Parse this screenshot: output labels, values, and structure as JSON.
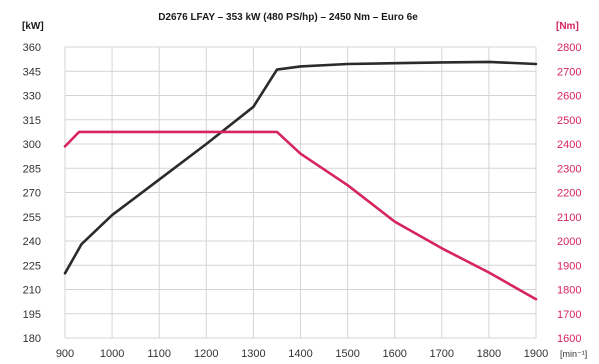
{
  "chart_data": {
    "type": "line",
    "title": "D2676 LFAY – 353 kW (480 PS/hp) – 2450 Nm – Euro 6e",
    "x_unit": "[min⁻¹]",
    "y_left_unit": "[kW]",
    "y_right_unit": "[Nm]",
    "xlim": [
      900,
      1900
    ],
    "x_ticks": [
      900,
      1000,
      1100,
      1200,
      1300,
      1400,
      1500,
      1600,
      1700,
      1800,
      1900
    ],
    "ylim_left": [
      180,
      360
    ],
    "y_left_ticks": [
      180,
      195,
      210,
      225,
      240,
      255,
      270,
      285,
      300,
      315,
      330,
      345,
      360
    ],
    "ylim_right": [
      1600,
      2800
    ],
    "y_right_ticks": [
      1600,
      1700,
      1800,
      1900,
      2000,
      2100,
      2200,
      2300,
      2400,
      2500,
      2600,
      2700,
      2800
    ],
    "grid": true,
    "colors": {
      "power": "#2b2b2b",
      "torque": "#d6245c"
    },
    "series": [
      {
        "axis": "left",
        "x": [
          900,
          935,
          1000,
          1100,
          1200,
          1300,
          1350,
          1400,
          1500,
          1600,
          1700,
          1800,
          1900
        ],
        "values": [
          220,
          238,
          256,
          278,
          300,
          323,
          346,
          348,
          349.5,
          350,
          350.5,
          350.8,
          349.5
        ]
      },
      {
        "axis": "right",
        "x": [
          900,
          930,
          1350,
          1400,
          1500,
          1600,
          1700,
          1800,
          1900
        ],
        "values": [
          2390,
          2450,
          2450,
          2360,
          2230,
          2080,
          1970,
          1870,
          1760
        ]
      }
    ]
  }
}
